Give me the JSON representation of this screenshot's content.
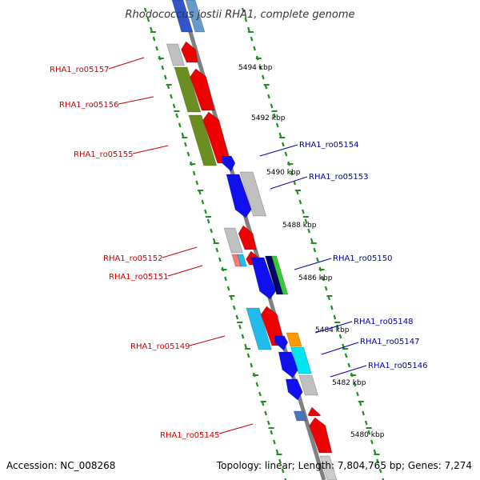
{
  "title": "Rhodococcus jostii RHA1, complete genome",
  "footer": {
    "accession": "Accession: NC_008268",
    "summary": "Topology: linear; Length: 7,804,765 bp; Genes: 7,274"
  },
  "kbp_labels": [
    "5494 kbp",
    "5492 kbp",
    "5490 kbp",
    "5488 kbp",
    "5486 kbp",
    "5484 kbp",
    "5482 kbp",
    "5480 kbp"
  ],
  "reverse_strand_genes": [
    {
      "locus": "RHA1_ro05157",
      "color": "#cc0000"
    },
    {
      "locus": "RHA1_ro05156",
      "color": "#cc0000"
    },
    {
      "locus": "RHA1_ro05155",
      "color": "#cc0000"
    },
    {
      "locus": "RHA1_ro05152",
      "color": "#cc0000"
    },
    {
      "locus": "RHA1_ro05151",
      "color": "#cc0000"
    },
    {
      "locus": "RHA1_ro05149",
      "color": "#cc0000"
    },
    {
      "locus": "RHA1_ro05145",
      "color": "#cc0000"
    }
  ],
  "forward_strand_genes": [
    {
      "locus": "RHA1_ro05154",
      "color": "#0000aa"
    },
    {
      "locus": "RHA1_ro05153",
      "color": "#0000aa"
    },
    {
      "locus": "RHA1_ro05150",
      "color": "#0000aa"
    },
    {
      "locus": "RHA1_ro05148",
      "color": "#0000aa"
    },
    {
      "locus": "RHA1_ro05147",
      "color": "#0000aa"
    },
    {
      "locus": "RHA1_ro05146",
      "color": "#0000aa"
    }
  ],
  "colors": {
    "backbone": "#808080",
    "tick": "#228b22",
    "red_arrow": "#ee0000",
    "blue_arrow": "#1010ee",
    "gray_block": "#c0c0c0",
    "olive_block": "#6b8e23",
    "cyan_block": "#22bbee",
    "orange_block": "#ff9900",
    "green_block": "#33cc33",
    "pink_block": "#ff7777"
  }
}
